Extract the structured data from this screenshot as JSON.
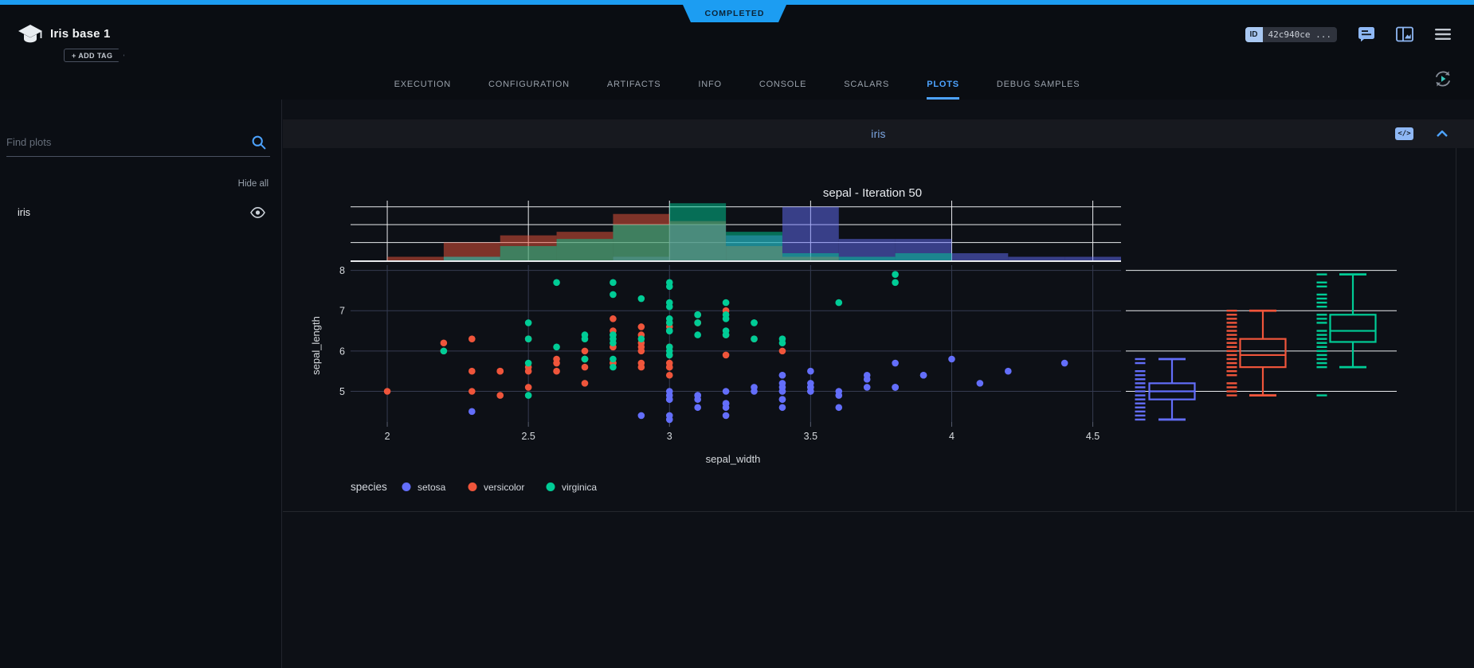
{
  "header": {
    "title": "Iris base 1",
    "add_tag_label": "+ ADD TAG",
    "status_badge": "COMPLETED",
    "id_label": "ID",
    "id_value": "42c940ce ...",
    "icons": [
      "experiment-cap-icon",
      "comment-icon",
      "panels-icon",
      "menu-icon",
      "auto-refresh-icon"
    ]
  },
  "tabs": {
    "items": [
      "EXECUTION",
      "CONFIGURATION",
      "ARTIFACTS",
      "INFO",
      "CONSOLE",
      "SCALARS",
      "PLOTS",
      "DEBUG SAMPLES"
    ],
    "active": "PLOTS"
  },
  "sidebar": {
    "search_placeholder": "Find plots",
    "hide_all_label": "Hide all",
    "items": [
      {
        "label": "iris",
        "icon": "eye-icon",
        "visible": true
      }
    ]
  },
  "plot_panel": {
    "group_title": "iris"
  },
  "chart_data": {
    "type": "scatter",
    "title": "sepal - Iteration 50",
    "xlabel": "sepal_width",
    "ylabel": "sepal_length",
    "x_ticks": [
      2,
      2.5,
      3,
      3.5,
      4,
      4.5
    ],
    "y_ticks": [
      5,
      6,
      7,
      8
    ],
    "xlim": [
      1.87,
      4.6
    ],
    "ylim": [
      4.24,
      8.13
    ],
    "grid": true,
    "legend_title": "species",
    "legend_position": "bottom-left",
    "colors": {
      "setosa": "#636EFA",
      "versicolor": "#EF553B",
      "virginica": "#00CC96"
    },
    "series": [
      {
        "name": "setosa",
        "color": "#636EFA",
        "points": [
          [
            3.5,
            5.1
          ],
          [
            3.0,
            4.9
          ],
          [
            3.2,
            4.7
          ],
          [
            3.1,
            4.6
          ],
          [
            3.6,
            5.0
          ],
          [
            3.9,
            5.4
          ],
          [
            3.4,
            4.6
          ],
          [
            3.4,
            5.0
          ],
          [
            2.9,
            4.4
          ],
          [
            3.1,
            4.9
          ],
          [
            3.7,
            5.4
          ],
          [
            3.4,
            4.8
          ],
          [
            3.0,
            4.8
          ],
          [
            3.0,
            4.3
          ],
          [
            4.0,
            5.8
          ],
          [
            4.4,
            5.7
          ],
          [
            3.9,
            5.4
          ],
          [
            3.5,
            5.1
          ],
          [
            3.8,
            5.7
          ],
          [
            3.8,
            5.1
          ],
          [
            3.4,
            5.4
          ],
          [
            3.7,
            5.1
          ],
          [
            3.6,
            4.6
          ],
          [
            3.3,
            5.1
          ],
          [
            3.4,
            4.8
          ],
          [
            3.0,
            5.0
          ],
          [
            3.4,
            5.0
          ],
          [
            3.5,
            5.2
          ],
          [
            3.4,
            5.2
          ],
          [
            3.2,
            4.7
          ],
          [
            3.1,
            4.8
          ],
          [
            3.4,
            5.4
          ],
          [
            4.1,
            5.2
          ],
          [
            4.2,
            5.5
          ],
          [
            3.1,
            4.9
          ],
          [
            3.2,
            5.0
          ],
          [
            3.5,
            5.5
          ],
          [
            3.6,
            4.9
          ],
          [
            3.0,
            4.4
          ],
          [
            3.4,
            5.1
          ],
          [
            3.5,
            5.0
          ],
          [
            2.3,
            4.5
          ],
          [
            3.2,
            4.4
          ],
          [
            3.5,
            5.0
          ],
          [
            3.8,
            5.1
          ],
          [
            3.0,
            4.8
          ],
          [
            3.8,
            5.1
          ],
          [
            3.2,
            4.6
          ],
          [
            3.7,
            5.3
          ],
          [
            3.3,
            5.0
          ]
        ]
      },
      {
        "name": "versicolor",
        "color": "#EF553B",
        "points": [
          [
            3.2,
            7.0
          ],
          [
            3.2,
            6.4
          ],
          [
            3.1,
            6.9
          ],
          [
            2.3,
            5.5
          ],
          [
            2.8,
            6.5
          ],
          [
            2.8,
            5.7
          ],
          [
            3.3,
            6.3
          ],
          [
            2.4,
            4.9
          ],
          [
            2.9,
            6.6
          ],
          [
            2.7,
            5.2
          ],
          [
            2.0,
            5.0
          ],
          [
            3.0,
            5.9
          ],
          [
            2.2,
            6.0
          ],
          [
            2.9,
            6.1
          ],
          [
            2.9,
            5.6
          ],
          [
            3.1,
            6.7
          ],
          [
            3.0,
            5.6
          ],
          [
            2.7,
            5.8
          ],
          [
            2.2,
            6.2
          ],
          [
            2.5,
            5.6
          ],
          [
            3.2,
            5.9
          ],
          [
            2.8,
            6.1
          ],
          [
            2.5,
            6.3
          ],
          [
            2.8,
            6.1
          ],
          [
            2.9,
            6.4
          ],
          [
            3.0,
            6.6
          ],
          [
            2.8,
            6.8
          ],
          [
            3.0,
            6.7
          ],
          [
            2.9,
            6.0
          ],
          [
            2.6,
            5.7
          ],
          [
            2.4,
            5.5
          ],
          [
            2.4,
            5.5
          ],
          [
            2.7,
            5.8
          ],
          [
            2.7,
            6.0
          ],
          [
            3.0,
            5.4
          ],
          [
            3.4,
            6.0
          ],
          [
            3.1,
            6.7
          ],
          [
            2.3,
            6.3
          ],
          [
            3.0,
            5.6
          ],
          [
            2.5,
            5.5
          ],
          [
            2.6,
            5.5
          ],
          [
            3.0,
            6.1
          ],
          [
            2.6,
            5.8
          ],
          [
            2.3,
            5.0
          ],
          [
            2.7,
            5.6
          ],
          [
            3.0,
            5.7
          ],
          [
            2.9,
            5.7
          ],
          [
            2.9,
            6.2
          ],
          [
            2.5,
            5.1
          ],
          [
            2.8,
            5.7
          ]
        ]
      },
      {
        "name": "virginica",
        "color": "#00CC96",
        "points": [
          [
            3.3,
            6.3
          ],
          [
            2.7,
            5.8
          ],
          [
            3.0,
            7.1
          ],
          [
            2.9,
            6.3
          ],
          [
            3.0,
            6.5
          ],
          [
            3.0,
            7.6
          ],
          [
            2.5,
            4.9
          ],
          [
            2.9,
            7.3
          ],
          [
            2.5,
            6.7
          ],
          [
            3.6,
            7.2
          ],
          [
            3.2,
            6.5
          ],
          [
            2.7,
            6.4
          ],
          [
            3.0,
            6.8
          ],
          [
            2.5,
            5.7
          ],
          [
            2.8,
            5.8
          ],
          [
            3.2,
            6.4
          ],
          [
            3.0,
            6.5
          ],
          [
            3.8,
            7.7
          ],
          [
            2.6,
            7.7
          ],
          [
            2.2,
            6.0
          ],
          [
            3.2,
            6.9
          ],
          [
            2.8,
            5.6
          ],
          [
            2.8,
            7.7
          ],
          [
            2.7,
            6.3
          ],
          [
            3.3,
            6.7
          ],
          [
            3.2,
            7.2
          ],
          [
            2.8,
            6.2
          ],
          [
            3.0,
            6.1
          ],
          [
            2.8,
            6.4
          ],
          [
            3.0,
            7.2
          ],
          [
            2.8,
            7.4
          ],
          [
            3.8,
            7.9
          ],
          [
            2.8,
            6.4
          ],
          [
            2.8,
            6.3
          ],
          [
            2.6,
            6.1
          ],
          [
            3.0,
            7.7
          ],
          [
            3.4,
            6.3
          ],
          [
            3.1,
            6.4
          ],
          [
            3.0,
            6.0
          ],
          [
            3.1,
            6.9
          ],
          [
            3.1,
            6.7
          ],
          [
            3.1,
            6.9
          ],
          [
            2.7,
            5.8
          ],
          [
            3.2,
            6.8
          ],
          [
            3.3,
            6.7
          ],
          [
            3.0,
            6.7
          ],
          [
            2.5,
            6.3
          ],
          [
            3.0,
            6.5
          ],
          [
            3.4,
            6.2
          ],
          [
            3.0,
            5.9
          ]
        ]
      }
    ],
    "marginal_x_histogram": {
      "bin_start": 2.0,
      "bin_size": 0.2,
      "grid_counts": [
        5,
        10,
        15
      ],
      "counts": {
        "setosa": [
          0,
          1,
          0,
          0,
          1,
          10,
          7,
          15,
          6,
          6,
          2,
          1,
          1
        ],
        "versicolor": [
          1,
          5,
          7,
          8,
          13,
          11,
          4,
          1,
          0,
          0,
          0,
          0,
          0
        ],
        "virginica": [
          0,
          1,
          4,
          6,
          10,
          16,
          8,
          2,
          1,
          2,
          0,
          0,
          0
        ]
      }
    },
    "marginal_y_box": {
      "setosa": {
        "min": 4.3,
        "q1": 4.8,
        "median": 5.0,
        "q3": 5.2,
        "max": 5.8,
        "outliers": []
      },
      "versicolor": {
        "min": 4.9,
        "q1": 5.6,
        "median": 5.9,
        "q3": 6.3,
        "max": 7.0,
        "outliers": []
      },
      "virginica": {
        "min": 5.6,
        "q1": 6.225,
        "median": 6.5,
        "q3": 6.9,
        "max": 7.9,
        "outliers": [
          4.9
        ]
      }
    }
  }
}
